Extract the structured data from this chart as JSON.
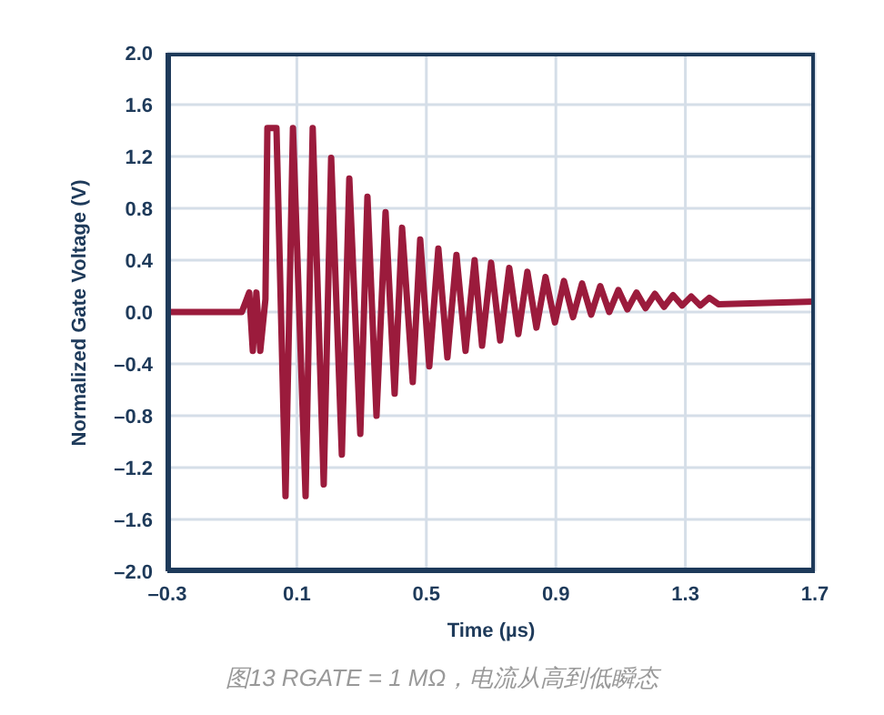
{
  "chart_data": {
    "type": "line",
    "xlabel": "Time (µs)",
    "ylabel": "Normalized Gate Voltage (V)",
    "annotations": [
      "图13 RGATE = 1 MΩ，电流从高到低瞬态"
    ],
    "xlim": [
      -0.3,
      1.7
    ],
    "xticks": [
      {
        "value": -0.3,
        "label": "–0.3"
      },
      0.1,
      0.5,
      0.9,
      1.3,
      1.7
    ],
    "ylim": [
      -2,
      2
    ],
    "yticks": [
      {
        "value": -2,
        "label": "–2.0"
      },
      {
        "value": -1.6,
        "label": "–1.6"
      },
      {
        "value": -1.2,
        "label": "–1.2"
      },
      {
        "value": -0.8,
        "label": "–0.8"
      },
      {
        "value": -0.4,
        "label": "–0.4"
      },
      {
        "value": 0,
        "label": "0.0"
      },
      {
        "value": 0.4,
        "label": "0.4"
      },
      {
        "value": 0.8,
        "label": "0.8"
      },
      {
        "value": 1.2,
        "label": "1.2"
      },
      {
        "value": 1.6,
        "label": "1.6"
      },
      {
        "value": 2,
        "label": "2.0"
      }
    ],
    "grid": true,
    "legend": false,
    "marker": "none",
    "line_style": "solid",
    "series": [
      {
        "color": "#9b1b3c",
        "x": [
          -0.3,
          -0.07,
          -0.047,
          -0.036,
          -0.025,
          -0.013,
          0.003,
          0.009,
          0.037,
          0.065,
          0.088,
          0.127,
          0.149,
          0.183,
          0.206,
          0.239,
          0.262,
          0.296,
          0.318,
          0.346,
          0.374,
          0.402,
          0.425,
          0.458,
          0.481,
          0.509,
          0.537,
          0.565,
          0.593,
          0.621,
          0.649,
          0.672,
          0.7,
          0.728,
          0.756,
          0.784,
          0.812,
          0.84,
          0.868,
          0.897,
          0.925,
          0.953,
          0.981,
          1.009,
          1.037,
          1.065,
          1.093,
          1.121,
          1.149,
          1.177,
          1.206,
          1.234,
          1.262,
          1.29,
          1.318,
          1.346,
          1.374,
          1.402,
          1.7
        ],
        "values": [
          0,
          0,
          0.15,
          -0.3,
          0.15,
          -0.3,
          0.1,
          1.42,
          1.42,
          -1.42,
          1.42,
          -1.42,
          1.42,
          -1.33,
          1.19,
          -1.1,
          1.03,
          -0.94,
          0.89,
          -0.8,
          0.77,
          -0.63,
          0.65,
          -0.54,
          0.56,
          -0.42,
          0.49,
          -0.35,
          0.44,
          -0.3,
          0.4,
          -0.26,
          0.38,
          -0.22,
          0.34,
          -0.17,
          0.31,
          -0.12,
          0.27,
          -0.08,
          0.24,
          -0.04,
          0.22,
          -0.02,
          0.2,
          0,
          0.17,
          0.02,
          0.15,
          0.03,
          0.14,
          0.04,
          0.13,
          0.05,
          0.12,
          0.05,
          0.11,
          0.06,
          0.08
        ]
      }
    ]
  }
}
